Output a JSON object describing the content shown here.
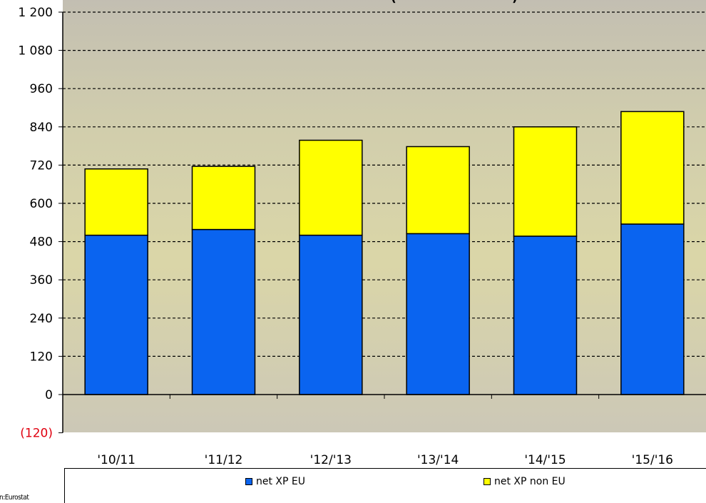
{
  "chart_data": {
    "type": "bar",
    "stacked": true,
    "title_fragment": "(",
    "title_fragment_end": ")",
    "categories": [
      "'10/11",
      "'11/12",
      "'12/'13",
      "'13/'14",
      "'14/'15",
      "'15/'16"
    ],
    "series": [
      {
        "name": "net XP EU",
        "color": "#0a64f0",
        "values": [
          500,
          518,
          500,
          505,
          497,
          535
        ]
      },
      {
        "name": "net XP non EU",
        "color": "#ffff00",
        "values": [
          208,
          198,
          298,
          273,
          343,
          353
        ]
      }
    ],
    "ylim": [
      -120,
      1200
    ],
    "yticks": [
      1200,
      1080,
      960,
      840,
      720,
      600,
      480,
      360,
      240,
      120,
      0,
      -120
    ],
    "ytick_labels": [
      "1 200",
      "1 080",
      "960",
      "840",
      "720",
      "600",
      "480",
      "360",
      "240",
      "120",
      "0",
      "(120)"
    ],
    "negative_label_color": "#e0000f",
    "grid": "dashed horizontal",
    "legend_position": "bottom"
  },
  "source_text": "on:Eurostat"
}
